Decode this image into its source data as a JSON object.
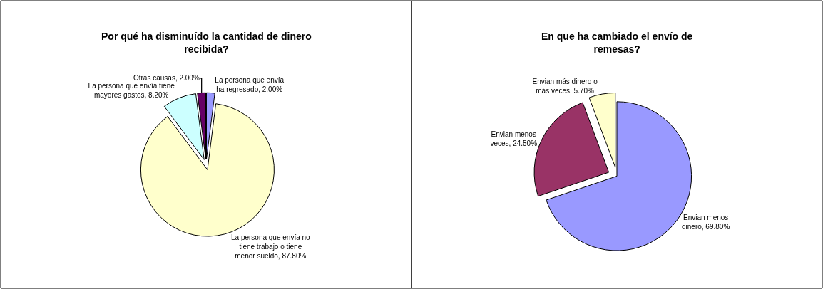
{
  "chart_data": [
    {
      "type": "pie",
      "title": "Por qué ha disminuído la cantidad de dinero recibida?",
      "categories": [
        "La persona que envía ha regresado",
        "La persona que envía no tiene trabajo o tiene menor sueldo",
        "La persona que envía tiene mayores gastos",
        "Otras causas"
      ],
      "values": [
        2.0,
        87.8,
        8.2,
        2.0
      ],
      "value_labels": [
        "2.00%",
        "87.80%",
        "8.20%",
        "2.00%"
      ],
      "colors": [
        "#9999ff",
        "#ffffcc",
        "#ccffff",
        "#660066"
      ]
    },
    {
      "type": "pie",
      "title": "En que ha cambiado el envío de remesas?",
      "categories": [
        "Envian menos dinero",
        "Envian menos veces",
        "Envian más dinero o más veces"
      ],
      "values": [
        69.8,
        24.5,
        5.7
      ],
      "value_labels": [
        "69.80%",
        "24.50%",
        "5.70%"
      ],
      "colors": [
        "#9999ff",
        "#993366",
        "#ffffcc"
      ]
    }
  ]
}
